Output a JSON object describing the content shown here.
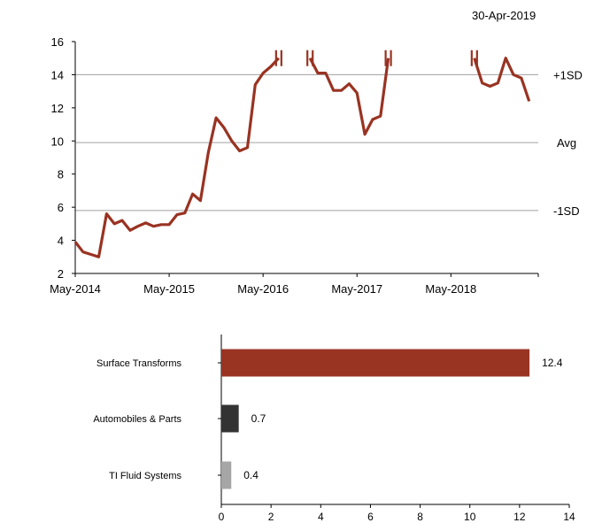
{
  "chart_data": [
    {
      "type": "line",
      "date_label": "30-Apr-2019",
      "x_tick_labels": [
        "May-2014",
        "May-2015",
        "May-2016",
        "May-2017",
        "May-2018"
      ],
      "ylim": [
        2,
        16
      ],
      "y_ticks": [
        2,
        4,
        6,
        8,
        10,
        12,
        14,
        16
      ],
      "reference_lines": [
        {
          "label": "+1SD",
          "value": 14.0
        },
        {
          "label": "Avg",
          "value": 9.9
        },
        {
          "label": "-1SD",
          "value": 5.8
        }
      ],
      "series": [
        {
          "color": "#993322",
          "x": [
            "2014-05",
            "2014-06",
            "2014-07",
            "2014-08",
            "2014-09",
            "2014-10",
            "2014-11",
            "2014-12",
            "2015-01",
            "2015-02",
            "2015-03",
            "2015-04",
            "2015-05",
            "2015-06",
            "2015-07",
            "2015-08",
            "2015-09",
            "2015-10",
            "2015-11",
            "2015-12",
            "2016-01",
            "2016-02",
            "2016-03",
            "2016-04",
            "2016-05",
            "2016-06",
            "2016-07",
            "2016-08",
            "2016-09",
            "2016-10",
            "2016-11",
            "2016-12",
            "2017-01",
            "2017-02",
            "2017-03",
            "2017-04",
            "2017-05",
            "2017-06",
            "2017-07",
            "2017-08",
            "2017-09",
            "2017-10",
            "2017-11",
            "2017-12",
            "2018-01",
            "2018-02",
            "2018-03",
            "2018-04",
            "2018-05",
            "2018-06",
            "2018-07",
            "2018-08",
            "2018-09",
            "2018-10",
            "2018-11",
            "2018-12",
            "2019-01",
            "2019-02",
            "2019-03",
            "2019-04"
          ],
          "values": [
            3.9,
            3.3,
            3.15,
            3.0,
            5.6,
            5.0,
            5.2,
            4.6,
            4.85,
            5.05,
            4.85,
            4.95,
            4.95,
            5.55,
            5.65,
            6.8,
            6.4,
            9.3,
            11.4,
            10.8,
            10.0,
            9.4,
            9.6,
            13.4,
            14.1,
            14.5,
            15.0,
            null,
            null,
            null,
            15.0,
            14.1,
            14.1,
            13.05,
            13.05,
            13.45,
            12.9,
            10.4,
            11.3,
            11.5,
            15.0,
            null,
            null,
            null,
            null,
            null,
            null,
            null,
            null,
            null,
            null,
            15.0,
            13.5,
            13.3,
            13.5,
            15.0,
            14.0,
            13.8,
            12.4,
            null
          ]
        }
      ]
    },
    {
      "type": "bar",
      "orientation": "horizontal",
      "categories": [
        "Surface Transforms",
        "Automobiles & Parts",
        "TI Fluid Systems"
      ],
      "values": [
        12.4,
        0.7,
        0.4
      ],
      "value_labels": [
        "12.4",
        "0.7",
        "0.4"
      ],
      "colors": [
        "#993322",
        "#333333",
        "#a6a6a6"
      ],
      "xlim": [
        0,
        14
      ],
      "x_ticks": [
        0,
        2,
        4,
        6,
        8,
        10,
        12,
        14
      ]
    }
  ]
}
